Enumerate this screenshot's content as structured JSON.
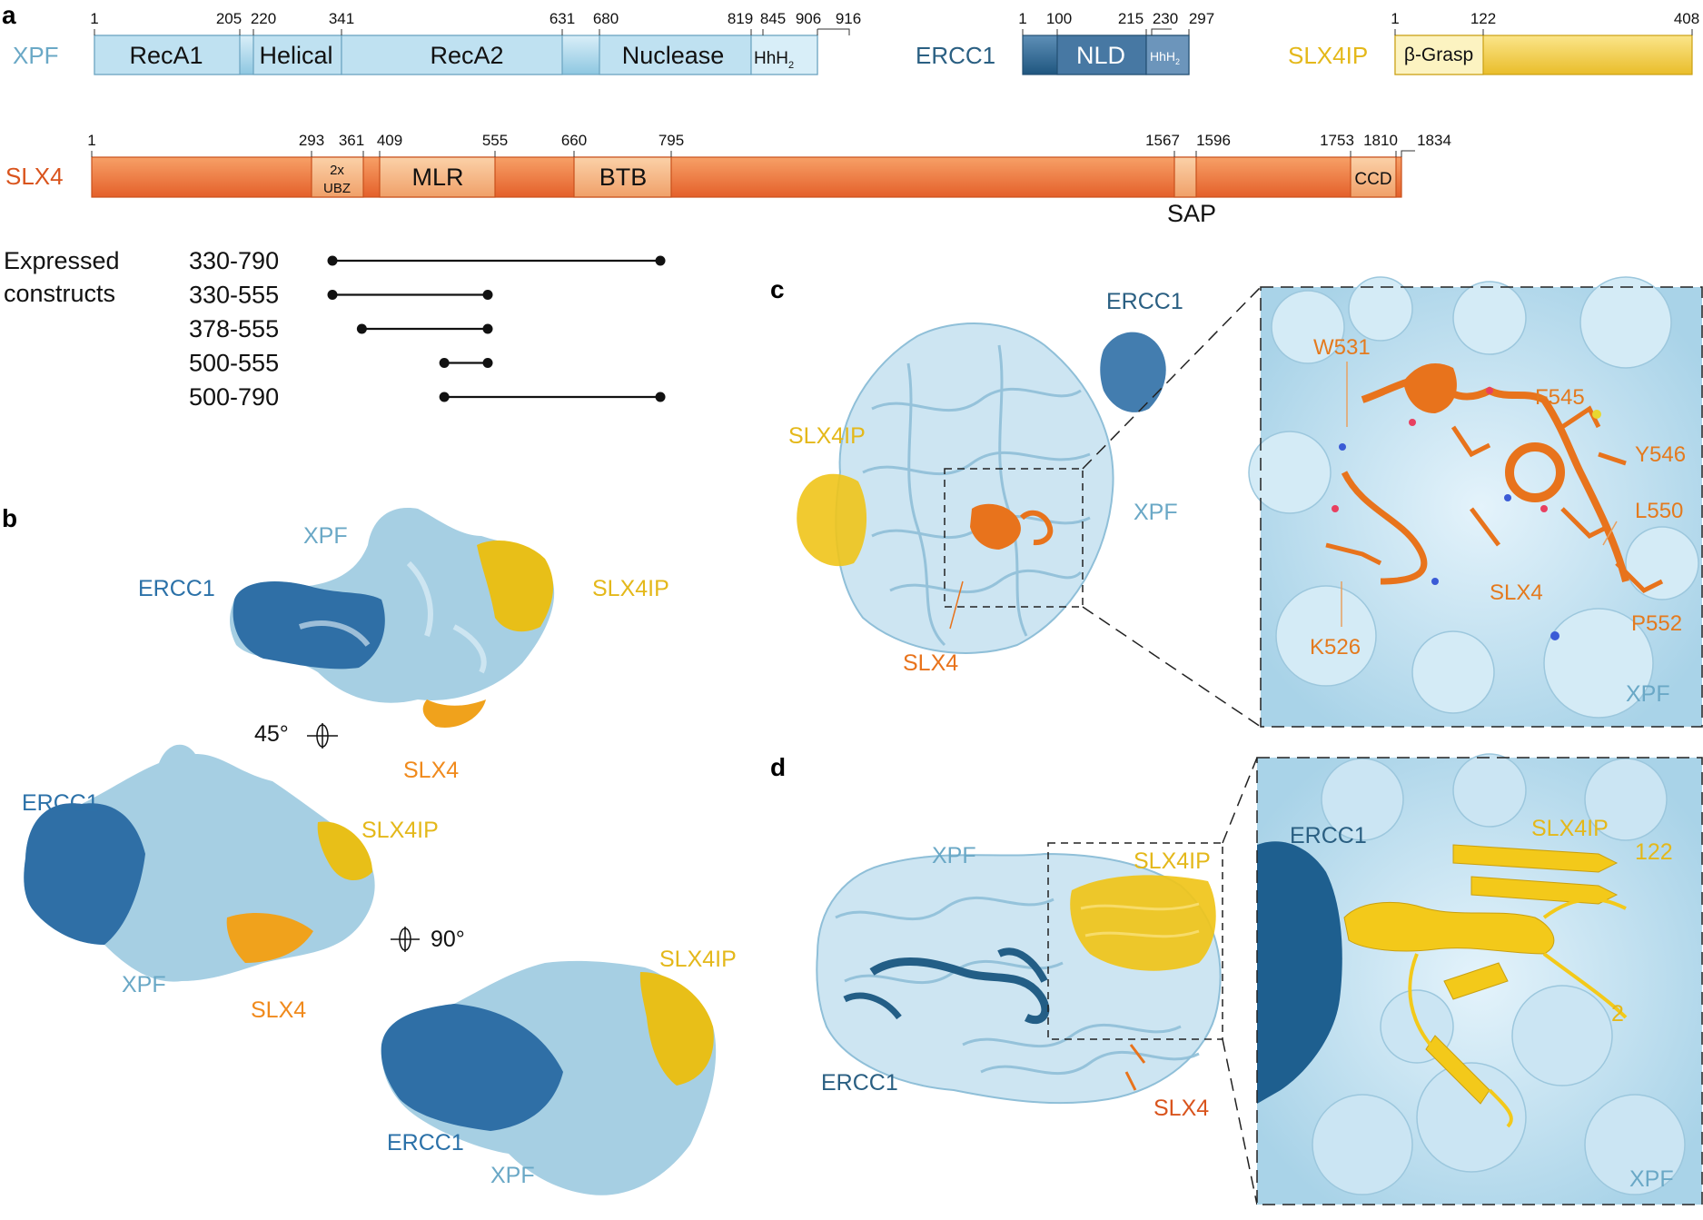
{
  "panels": {
    "a": "a",
    "b": "b",
    "c": "c",
    "d": "d"
  },
  "colors": {
    "xpf": "#6fb0cf",
    "xpf_light": "#bfe0f0",
    "ercc1": "#235e86",
    "slx4ip": "#e4b81a",
    "slx4": "#d9541d",
    "slx4_orange": "#e47a1e",
    "xpf_text": "#6aa8c6",
    "ercc1_text": "#2a5f82"
  },
  "xpf": {
    "name": "XPF",
    "ticks": [
      "1",
      "205",
      "220",
      "341",
      "631",
      "680",
      "819",
      "845",
      "906",
      "916"
    ],
    "domains": [
      "RecA1",
      "Helical",
      "RecA2",
      "Nuclease",
      "HhH"
    ],
    "hhh_sub": "2"
  },
  "ercc1": {
    "name": "ERCC1",
    "ticks": [
      "1",
      "100",
      "215",
      "230",
      "297"
    ],
    "domains": [
      "NLD",
      "HhH"
    ],
    "hhh_sub": "2"
  },
  "slx4ip": {
    "name": "SLX4IP",
    "ticks": [
      "1",
      "122",
      "408"
    ],
    "domains": [
      "β-Grasp"
    ]
  },
  "slx4": {
    "name": "SLX4",
    "ticks": [
      "1",
      "293",
      "361",
      "409",
      "555",
      "660",
      "795",
      "1567",
      "1596",
      "1753",
      "1810",
      "1834"
    ],
    "domains": {
      "ubz_line1": "2x",
      "ubz_line2": "UBZ",
      "mlr": "MLR",
      "btb": "BTB",
      "ccd": "CCD",
      "sap": "SAP"
    }
  },
  "constructs": {
    "title_line1": "Expressed",
    "title_line2": "constructs",
    "items": [
      {
        "label": "330-790",
        "start": 330,
        "end": 790
      },
      {
        "label": "330-555",
        "start": 330,
        "end": 555
      },
      {
        "label": "378-555",
        "start": 378,
        "end": 555
      },
      {
        "label": "500-555",
        "start": 500,
        "end": 555
      },
      {
        "label": "500-790",
        "start": 500,
        "end": 790
      }
    ]
  },
  "panel_b": {
    "v1": {
      "xpf": "XPF",
      "ercc1": "ERCC1",
      "slx4ip": "SLX4IP",
      "slx4": "SLX4"
    },
    "rot1": "45°",
    "v2": {
      "ercc1": "ERCC1",
      "slx4ip": "SLX4IP",
      "xpf": "XPF",
      "slx4": "SLX4"
    },
    "rot2": "90°",
    "v3": {
      "slx4ip": "SLX4IP",
      "ercc1": "ERCC1",
      "xpf": "XPF"
    }
  },
  "panel_c": {
    "ercc1": "ERCC1",
    "slx4ip": "SLX4IP",
    "xpf": "XPF",
    "slx4": "SLX4",
    "zoom": {
      "w531": "W531",
      "f545": "F545",
      "y546": "Y546",
      "l550": "L550",
      "slx4": "SLX4",
      "k526": "K526",
      "p552": "P552",
      "xpf": "XPF"
    }
  },
  "panel_d": {
    "xpf": "XPF",
    "slx4ip": "SLX4IP",
    "ercc1": "ERCC1",
    "slx4": "SLX4",
    "zoom": {
      "ercc1": "ERCC1",
      "slx4ip": "SLX4IP",
      "n122": "122",
      "n2": "2",
      "xpf": "XPF"
    }
  }
}
